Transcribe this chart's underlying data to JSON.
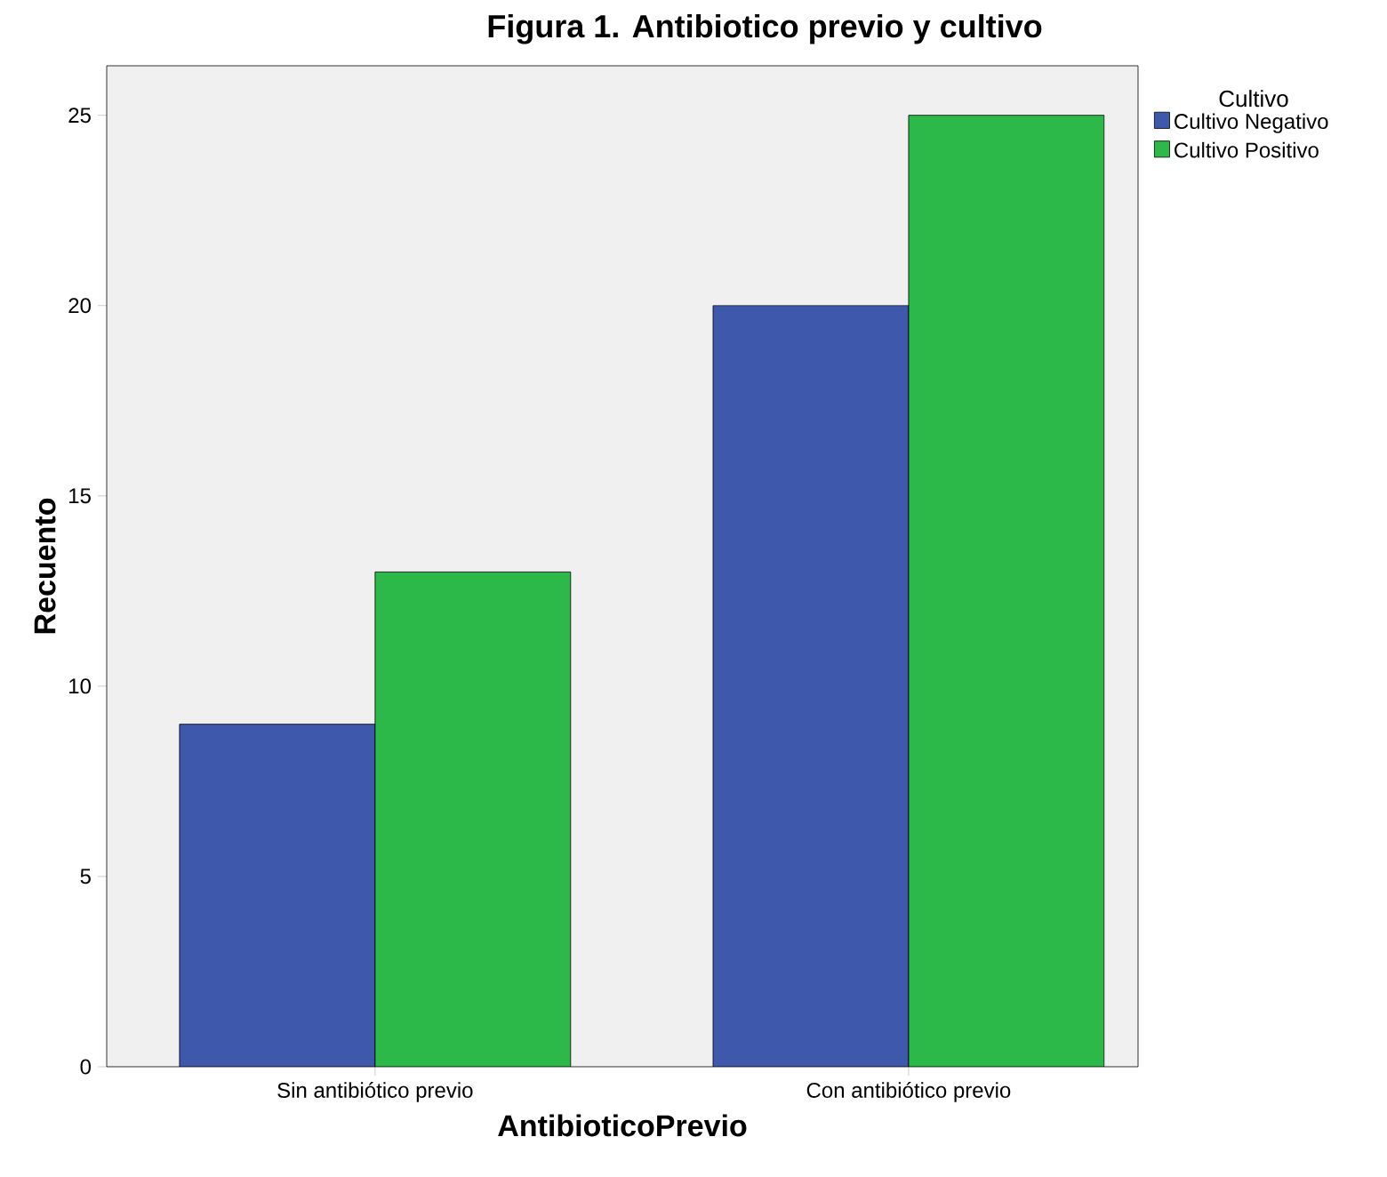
{
  "chart_data": {
    "type": "bar",
    "title": "Figura 1. Antibiotico previo y cultivo",
    "xlabel": "AntibioticoPrevio",
    "ylabel": "Recuento",
    "legend_title": "Cultivo",
    "legend": "right",
    "categories": [
      "Sin antibiótico previo",
      "Con antibiótico previo"
    ],
    "series": [
      {
        "name": "Cultivo Negativo",
        "color": "#3e58ac",
        "values": [
          9,
          20
        ]
      },
      {
        "name": "Cultivo Positivo",
        "color": "#2db84a",
        "values": [
          13,
          25
        ]
      }
    ],
    "ylim": [
      0,
      26.3
    ],
    "yticks": [
      0,
      5,
      10,
      15,
      20,
      25
    ]
  }
}
